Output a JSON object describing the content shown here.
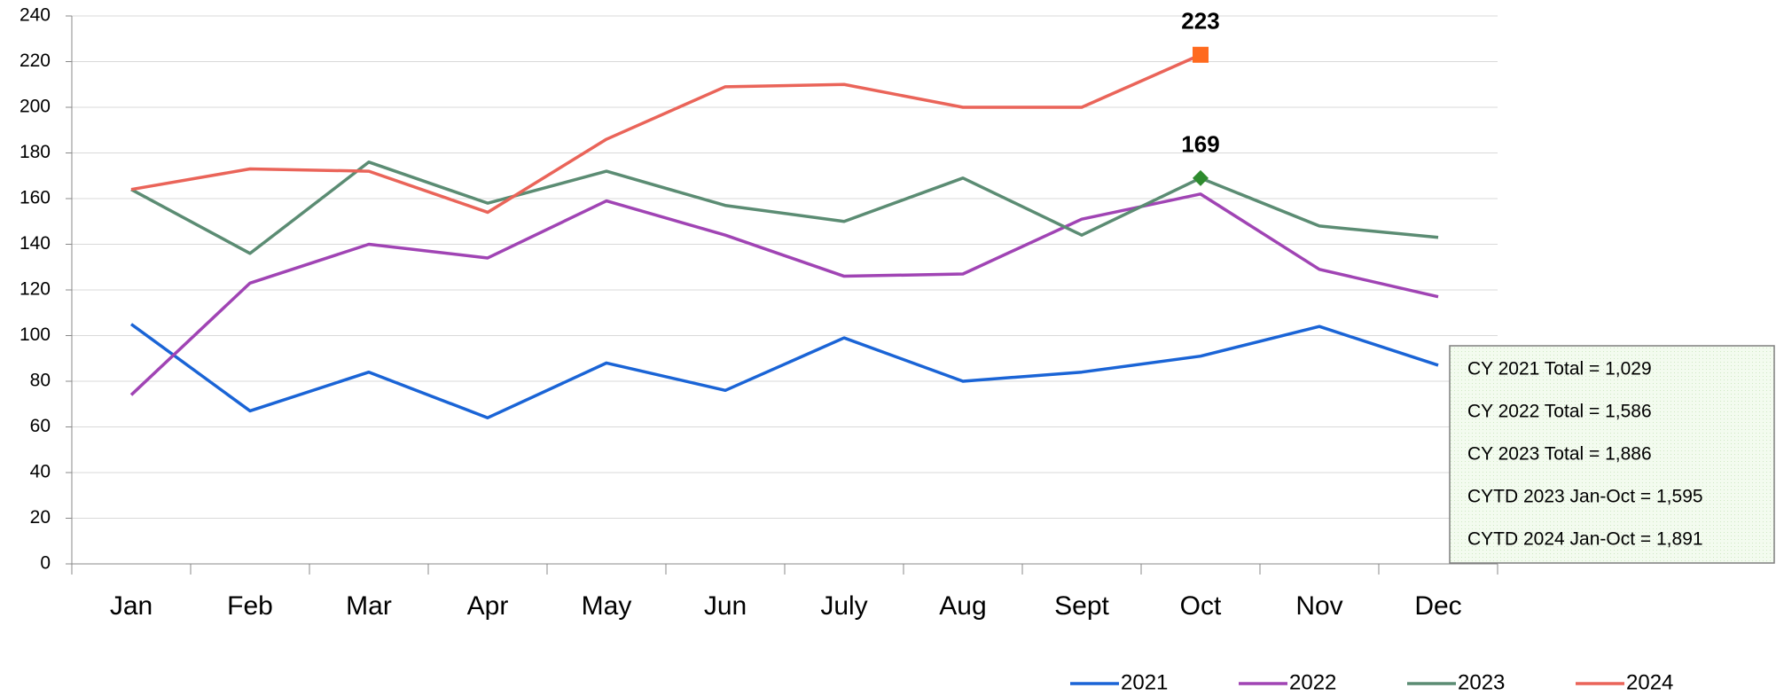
{
  "chart_data": {
    "type": "line",
    "categories": [
      "Jan",
      "Feb",
      "Mar",
      "Apr",
      "May",
      "Jun",
      "July",
      "Aug",
      "Sept",
      "Oct",
      "Nov",
      "Dec"
    ],
    "series": [
      {
        "name": "2021",
        "color": "#1a64d6",
        "values": [
          105,
          67,
          84,
          64,
          88,
          76,
          99,
          80,
          84,
          91,
          104,
          87
        ]
      },
      {
        "name": "2022",
        "color": "#a044b4",
        "values": [
          74,
          123,
          140,
          134,
          159,
          144,
          126,
          127,
          151,
          162,
          129,
          117
        ]
      },
      {
        "name": "2023",
        "color": "#5b8c73",
        "values": [
          164,
          136,
          176,
          158,
          172,
          157,
          150,
          169,
          144,
          169,
          148,
          143
        ],
        "marker": {
          "index": 9,
          "shape": "diamond",
          "color": "#2e8b2e"
        }
      },
      {
        "name": "2024",
        "color": "#ea6459",
        "values": [
          164,
          173,
          172,
          154,
          186,
          209,
          210,
          200,
          200,
          223,
          null,
          null
        ],
        "marker": {
          "index": 9,
          "shape": "square",
          "color": "#ff6a1f"
        }
      }
    ],
    "ylim": [
      0,
      240
    ],
    "yticks": [
      0,
      20,
      40,
      60,
      80,
      100,
      120,
      140,
      160,
      180,
      200,
      220,
      240
    ],
    "grid": true,
    "legend": "bottom-right",
    "annotations": [
      "CY 2021 Total = 1,029",
      "CY 2022 Total = 1,586",
      "CY 2023 Total = 1,886",
      "CYTD 2023 Jan-Oct = 1,595",
      "CYTD 2024 Jan-Oct = 1,891"
    ]
  }
}
